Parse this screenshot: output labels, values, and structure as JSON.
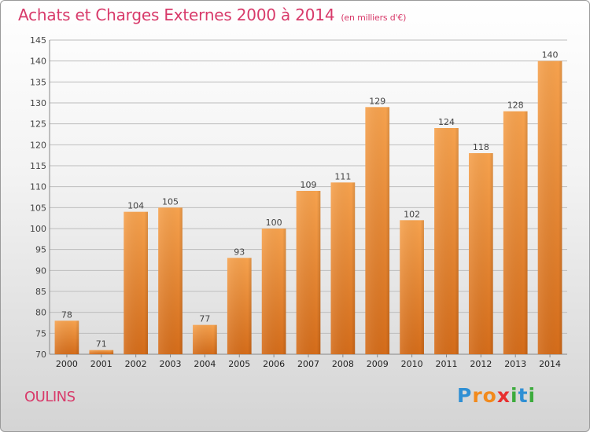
{
  "page": {
    "title": "Achats et Charges Externes 2000 à 2014",
    "unit": "(en milliers d'€)",
    "commune": "OULINS",
    "logo": {
      "letters": [
        "P",
        "r",
        "o",
        "x",
        "i",
        "t",
        "i"
      ],
      "colors": [
        "#2f8fd4",
        "#f28a1c",
        "#f28a1c",
        "#e83030",
        "#3cab3c",
        "#2f8fd4",
        "#3cab3c"
      ]
    }
  },
  "chart_data": {
    "type": "bar",
    "title": "Achats et Charges Externes 2000 à 2014",
    "subtitle": "(en milliers d'€)",
    "categories": [
      "2000",
      "2001",
      "2002",
      "2003",
      "2004",
      "2005",
      "2006",
      "2007",
      "2008",
      "2009",
      "2010",
      "2011",
      "2012",
      "2013",
      "2014"
    ],
    "values": [
      78,
      71,
      104,
      105,
      77,
      93,
      100,
      109,
      111,
      129,
      102,
      124,
      118,
      128,
      140
    ],
    "ylim": [
      70,
      145
    ],
    "yticks": [
      70,
      75,
      80,
      85,
      90,
      95,
      100,
      105,
      110,
      115,
      120,
      125,
      130,
      135,
      140,
      145
    ],
    "grid": true,
    "colors": {
      "bar_top": "#f6a24e",
      "bar_bottom": "#d46c1a",
      "grid": "#bdbdbd",
      "axis_text": "#444444",
      "title": "#d83a6a"
    }
  }
}
